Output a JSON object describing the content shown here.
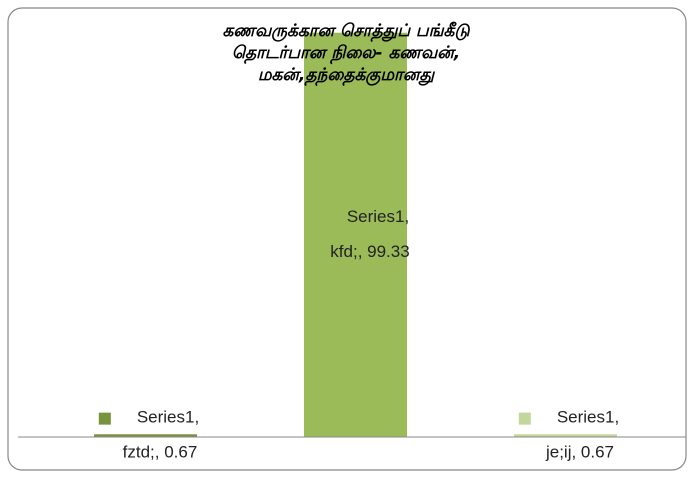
{
  "chart_data": {
    "type": "bar",
    "title": "கணவருக்கான சொத்துப் பங்கீடு\nதொடர்பான நிலை-    கணவன்,\nமகன்,தந்தைக்குமானது",
    "categories": [
      "fztd;",
      "kfd;",
      "je;ij"
    ],
    "values": [
      0.67,
      99.33,
      0.67
    ],
    "value_labels": [
      "Series1, fztd;, 0.67",
      "Series1, kfd;, 99.33",
      "Series1, je;ij, 0.67"
    ],
    "colors": [
      "#77933c",
      "#9bbb59",
      "#c3d69b"
    ],
    "ylim": [
      0,
      100
    ]
  }
}
